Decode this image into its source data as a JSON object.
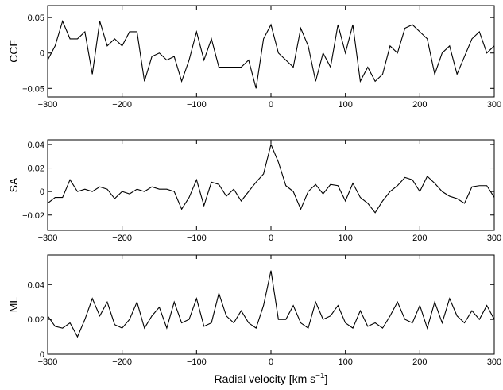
{
  "chart_data": [
    {
      "type": "line",
      "ylabel": "CCF",
      "color": "#000000",
      "x": [
        -300,
        -290,
        -280,
        -270,
        -260,
        -250,
        -240,
        -230,
        -220,
        -210,
        -200,
        -190,
        -180,
        -170,
        -160,
        -150,
        -140,
        -130,
        -120,
        -110,
        -100,
        -90,
        -80,
        -70,
        -60,
        -50,
        -40,
        -30,
        -20,
        -10,
        0,
        10,
        20,
        30,
        40,
        50,
        60,
        70,
        80,
        90,
        100,
        110,
        120,
        130,
        140,
        150,
        160,
        170,
        180,
        190,
        200,
        210,
        220,
        230,
        240,
        250,
        260,
        270,
        280,
        290,
        300
      ],
      "values": [
        -0.01,
        0.01,
        0.045,
        0.02,
        0.02,
        0.03,
        -0.03,
        0.045,
        0.01,
        0.02,
        0.01,
        0.03,
        0.03,
        -0.04,
        -0.005,
        0.0,
        -0.01,
        -0.005,
        -0.04,
        -0.01,
        0.03,
        -0.01,
        0.02,
        -0.02,
        -0.02,
        -0.02,
        -0.02,
        -0.01,
        -0.05,
        0.02,
        0.04,
        0.0,
        -0.01,
        -0.02,
        0.035,
        0.01,
        -0.04,
        0.0,
        -0.02,
        0.04,
        0.0,
        0.04,
        -0.04,
        -0.02,
        -0.04,
        -0.03,
        0.01,
        0.0,
        0.035,
        0.04,
        0.03,
        0.02,
        -0.03,
        0.0,
        0.01,
        -0.03,
        -0.005,
        0.02,
        0.03,
        0.0,
        0.01
      ],
      "xlim": [
        -300,
        300
      ],
      "xticks": [
        {
          "value": -300,
          "label": "−300"
        },
        {
          "value": -200,
          "label": "−200"
        },
        {
          "value": -100,
          "label": "−100"
        },
        0,
        100,
        200,
        300
      ],
      "ylim": [
        -0.062,
        0.067
      ],
      "yticks": [
        {
          "value": -0.05,
          "label": "−0.05"
        },
        0,
        0.05
      ]
    },
    {
      "type": "line",
      "ylabel": "SA",
      "color": "#000000",
      "x": [
        -300,
        -290,
        -280,
        -270,
        -260,
        -250,
        -240,
        -230,
        -220,
        -210,
        -200,
        -190,
        -180,
        -170,
        -160,
        -150,
        -140,
        -130,
        -120,
        -110,
        -100,
        -90,
        -80,
        -70,
        -60,
        -50,
        -40,
        -30,
        -20,
        -10,
        0,
        10,
        20,
        30,
        40,
        50,
        60,
        70,
        80,
        90,
        100,
        110,
        120,
        130,
        140,
        150,
        160,
        170,
        180,
        190,
        200,
        210,
        220,
        230,
        240,
        250,
        260,
        270,
        280,
        290,
        300
      ],
      "values": [
        -0.01,
        -0.005,
        -0.005,
        0.01,
        0.0,
        0.002,
        0.0,
        0.004,
        0.002,
        -0.006,
        0.0,
        -0.002,
        0.002,
        0.0,
        0.004,
        0.002,
        0.002,
        0.0,
        -0.015,
        -0.005,
        0.01,
        -0.012,
        0.008,
        0.006,
        -0.004,
        0.002,
        -0.008,
        0.0,
        0.008,
        0.015,
        0.04,
        0.025,
        0.005,
        0.0,
        -0.015,
        0.0,
        0.006,
        -0.002,
        0.006,
        0.005,
        -0.008,
        0.007,
        -0.005,
        -0.01,
        -0.018,
        -0.008,
        0.0,
        0.005,
        0.012,
        0.01,
        0.0,
        0.013,
        0.007,
        0.0,
        -0.004,
        -0.006,
        -0.01,
        0.004,
        0.005,
        0.005,
        -0.005
      ],
      "xlim": [
        -300,
        300
      ],
      "xticks": [
        {
          "value": -300,
          "label": "−300"
        },
        {
          "value": -200,
          "label": "−200"
        },
        {
          "value": -100,
          "label": "−100"
        },
        0,
        100,
        200,
        300
      ],
      "ylim": [
        -0.033,
        0.044
      ],
      "yticks": [
        {
          "value": -0.02,
          "label": "−0.02"
        },
        0,
        0.02,
        0.04
      ]
    },
    {
      "type": "line",
      "ylabel": "ML",
      "color": "#000000",
      "xlabel": "Radial velocity [km s",
      "xlabel_superscript": "−1",
      "xlabel_end": "]",
      "x": [
        -300,
        -290,
        -280,
        -270,
        -260,
        -250,
        -240,
        -230,
        -220,
        -210,
        -200,
        -190,
        -180,
        -170,
        -160,
        -150,
        -140,
        -130,
        -120,
        -110,
        -100,
        -90,
        -80,
        -70,
        -60,
        -50,
        -40,
        -30,
        -20,
        -10,
        0,
        10,
        20,
        30,
        40,
        50,
        60,
        70,
        80,
        90,
        100,
        110,
        120,
        130,
        140,
        150,
        160,
        170,
        180,
        190,
        200,
        210,
        220,
        230,
        240,
        250,
        260,
        270,
        280,
        290,
        300
      ],
      "values": [
        0.022,
        0.016,
        0.015,
        0.018,
        0.01,
        0.02,
        0.032,
        0.022,
        0.03,
        0.017,
        0.015,
        0.02,
        0.03,
        0.015,
        0.022,
        0.027,
        0.015,
        0.03,
        0.018,
        0.02,
        0.032,
        0.016,
        0.018,
        0.035,
        0.022,
        0.018,
        0.025,
        0.018,
        0.015,
        0.028,
        0.048,
        0.02,
        0.02,
        0.028,
        0.018,
        0.015,
        0.03,
        0.02,
        0.022,
        0.028,
        0.018,
        0.015,
        0.025,
        0.016,
        0.018,
        0.015,
        0.022,
        0.03,
        0.02,
        0.018,
        0.028,
        0.015,
        0.03,
        0.018,
        0.032,
        0.022,
        0.018,
        0.025,
        0.02,
        0.028,
        0.02
      ],
      "xlim": [
        -300,
        300
      ],
      "xticks": [
        {
          "value": -300,
          "label": "−300"
        },
        {
          "value": -200,
          "label": "−200"
        },
        {
          "value": -100,
          "label": "−100"
        },
        0,
        100,
        200,
        300
      ],
      "ylim": [
        0,
        0.057
      ],
      "yticks": [
        0,
        0.02,
        0.04
      ]
    }
  ]
}
